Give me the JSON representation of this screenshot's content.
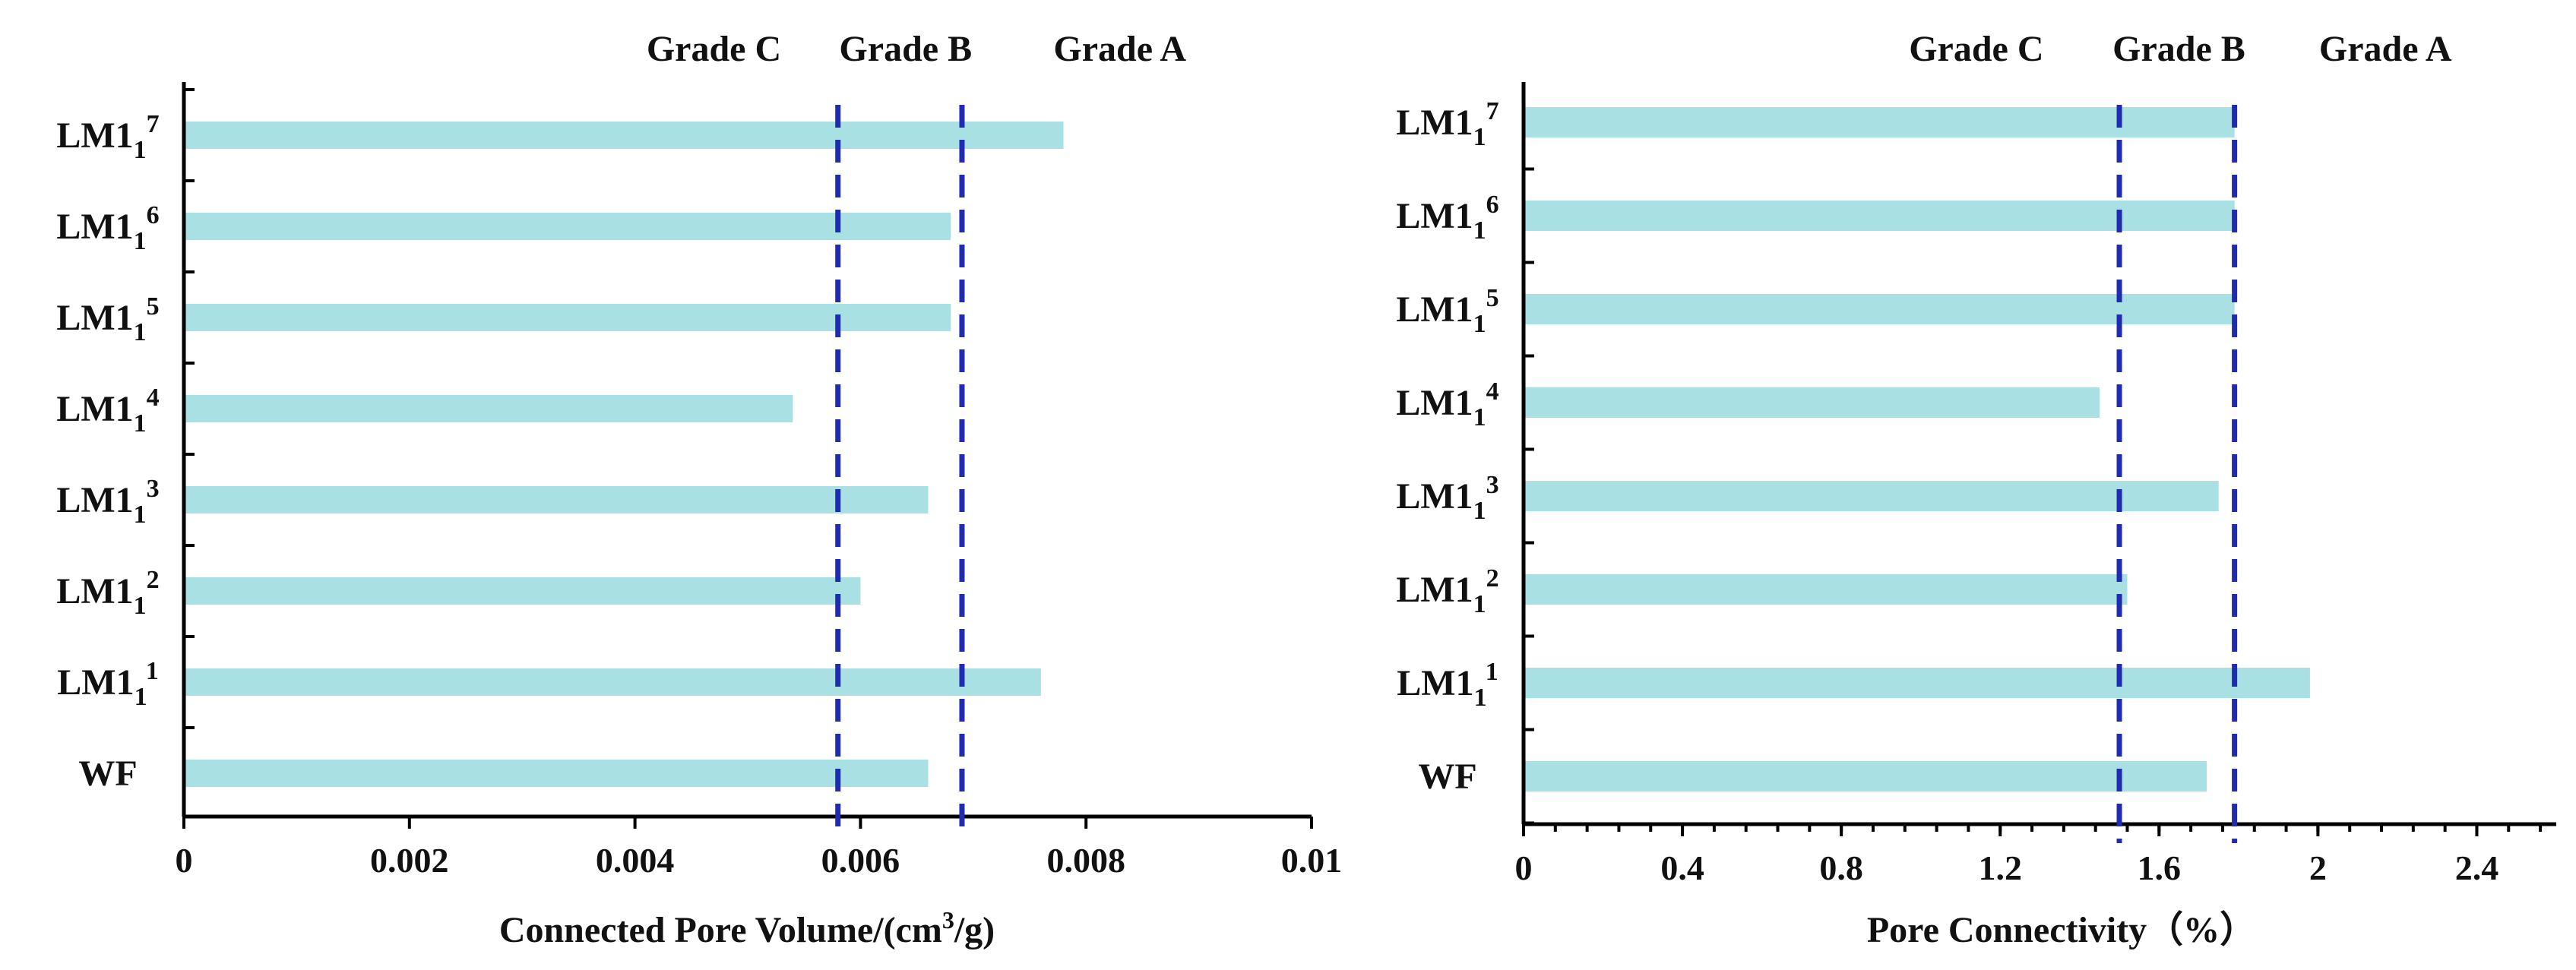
{
  "chart_data": [
    {
      "type": "bar",
      "orientation": "horizontal",
      "title": "",
      "xlabel_parts": [
        "Connected Pore Volume/(cm",
        "3",
        "/g)"
      ],
      "ylabel": "",
      "categories": [
        {
          "base": "LM1",
          "sub": "1",
          "sup": "7"
        },
        {
          "base": "LM1",
          "sub": "1",
          "sup": "6"
        },
        {
          "base": "LM1",
          "sub": "1",
          "sup": "5"
        },
        {
          "base": "LM1",
          "sub": "1",
          "sup": "4"
        },
        {
          "base": "LM1",
          "sub": "1",
          "sup": "3"
        },
        {
          "base": "LM1",
          "sub": "1",
          "sup": "2"
        },
        {
          "base": "LM1",
          "sub": "1",
          "sup": "1"
        },
        {
          "base": "WF",
          "sub": "",
          "sup": ""
        }
      ],
      "values": [
        0.0078,
        0.0068,
        0.0068,
        0.0054,
        0.0066,
        0.006,
        0.0076,
        0.0066
      ],
      "xlim": [
        0,
        0.01
      ],
      "xticks": [
        0,
        0.002,
        0.004,
        0.006,
        0.008,
        0.01
      ],
      "xtick_labels": [
        "0",
        "0.002",
        "0.004",
        "0.006",
        "0.008",
        "0.01"
      ],
      "xticks_minor_per_major": 0,
      "reference_lines": [
        {
          "value": 0.0058,
          "style": "dashed"
        },
        {
          "value": 0.0069,
          "style": "dashed"
        }
      ],
      "grade_labels": [
        {
          "text": "Grade C",
          "position": 0.0047
        },
        {
          "text": "Grade B",
          "position": 0.0064
        },
        {
          "text": "Grade A",
          "position": 0.0083
        }
      ],
      "grid": false,
      "bar_color": "#a8e0e4",
      "line_color": "#1f2bb0"
    },
    {
      "type": "bar",
      "orientation": "horizontal",
      "title": "",
      "xlabel_parts": [
        "Pore Connectivity（%）"
      ],
      "ylabel": "",
      "categories": [
        {
          "base": "LM1",
          "sub": "1",
          "sup": "7"
        },
        {
          "base": "LM1",
          "sub": "1",
          "sup": "6"
        },
        {
          "base": "LM1",
          "sub": "1",
          "sup": "5"
        },
        {
          "base": "LM1",
          "sub": "1",
          "sup": "4"
        },
        {
          "base": "LM1",
          "sub": "1",
          "sup": "3"
        },
        {
          "base": "LM1",
          "sub": "1",
          "sup": "2"
        },
        {
          "base": "LM1",
          "sub": "1",
          "sup": "1"
        },
        {
          "base": "WF",
          "sub": "",
          "sup": ""
        }
      ],
      "values": [
        1.79,
        1.79,
        1.79,
        1.45,
        1.75,
        1.52,
        1.98,
        1.72
      ],
      "xlim": [
        0,
        2.6
      ],
      "xticks": [
        0,
        0.4,
        0.8,
        1.2,
        1.6,
        2,
        2.4
      ],
      "xtick_labels": [
        "0",
        "0.4",
        "0.8",
        "1.2",
        "1.6",
        "2",
        "2.4"
      ],
      "xticks_minor_per_major": 4,
      "reference_lines": [
        {
          "value": 1.5,
          "style": "dashed"
        },
        {
          "value": 1.79,
          "style": "dashed"
        }
      ],
      "grade_labels": [
        {
          "text": "Grade C",
          "position": 1.14
        },
        {
          "text": "Grade B",
          "position": 1.65
        },
        {
          "text": "Grade A",
          "position": 2.17
        }
      ],
      "grid": false,
      "bar_color": "#a8e0e4",
      "line_color": "#1f2bb0"
    }
  ]
}
